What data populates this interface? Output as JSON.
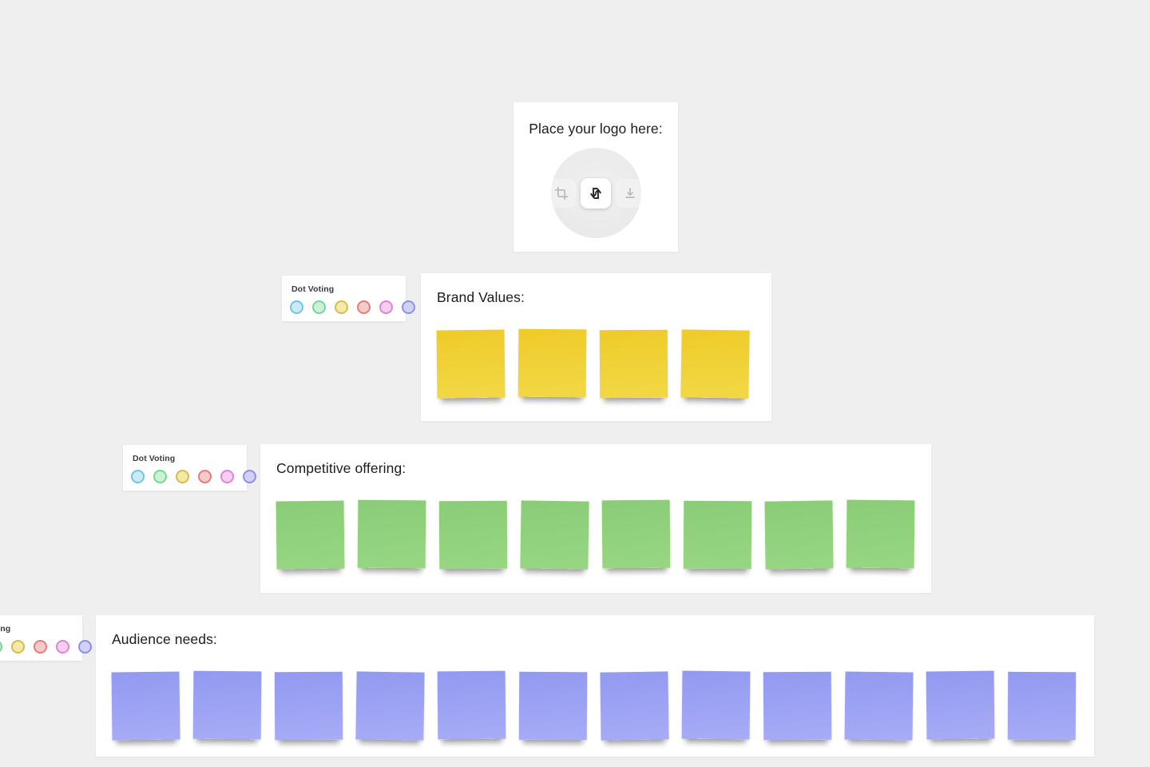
{
  "canvas": {
    "background_color": "#efefef"
  },
  "logo_card": {
    "title": "Place your logo here:",
    "icons": {
      "left": "crop-icon",
      "center": "replace-swap-arrows-icon",
      "right": "download-icon"
    }
  },
  "dot_voting_widgets": [
    {
      "title": "Dot Voting",
      "dots": [
        {
          "name": "blue",
          "fill": "#c9eaf7",
          "border": "#72c4e4"
        },
        {
          "name": "green",
          "fill": "#cbf2d7",
          "border": "#76d794"
        },
        {
          "name": "yellow",
          "fill": "#f4e9a6",
          "border": "#d4bd50"
        },
        {
          "name": "red",
          "fill": "#f7caca",
          "border": "#e07e7e"
        },
        {
          "name": "pink",
          "fill": "#f7cdf0",
          "border": "#de84d6"
        },
        {
          "name": "purple",
          "fill": "#d0d0f8",
          "border": "#8e8ee3"
        }
      ]
    },
    {
      "title": "Dot Voting",
      "dots": [
        {
          "name": "blue",
          "fill": "#c9eaf7",
          "border": "#72c4e4"
        },
        {
          "name": "green",
          "fill": "#cbf2d7",
          "border": "#76d794"
        },
        {
          "name": "yellow",
          "fill": "#f4e9a6",
          "border": "#d4bd50"
        },
        {
          "name": "red",
          "fill": "#f7caca",
          "border": "#e07e7e"
        },
        {
          "name": "pink",
          "fill": "#f7cdf0",
          "border": "#de84d6"
        },
        {
          "name": "purple",
          "fill": "#d0d0f8",
          "border": "#8e8ee3"
        }
      ]
    },
    {
      "title": "Dot Voting",
      "dots": [
        {
          "name": "blue",
          "fill": "#c9eaf7",
          "border": "#72c4e4"
        },
        {
          "name": "green",
          "fill": "#cbf2d7",
          "border": "#76d794"
        },
        {
          "name": "yellow",
          "fill": "#f4e9a6",
          "border": "#d4bd50"
        },
        {
          "name": "red",
          "fill": "#f7caca",
          "border": "#e07e7e"
        },
        {
          "name": "pink",
          "fill": "#f7cdf0",
          "border": "#de84d6"
        },
        {
          "name": "purple",
          "fill": "#d0d0f8",
          "border": "#8e8ee3"
        }
      ]
    }
  ],
  "sections": [
    {
      "title": "Brand Values:",
      "note_count": 4,
      "note_color": {
        "name": "yellow",
        "top": "#efcb28",
        "bottom": "#f2d847"
      }
    },
    {
      "title": "Competitive offering:",
      "note_count": 8,
      "note_color": {
        "name": "green",
        "top": "#8bcc76",
        "bottom": "#97d782"
      }
    },
    {
      "title": "Audience needs:",
      "note_count": 12,
      "note_color": {
        "name": "purple",
        "top": "#929af0",
        "bottom": "#a7acf6"
      }
    }
  ]
}
